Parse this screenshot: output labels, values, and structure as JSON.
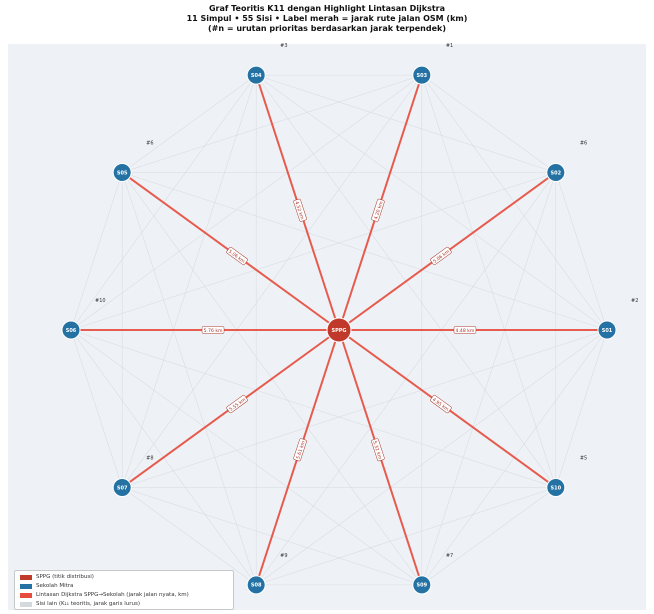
{
  "title": {
    "line1": "Graf Teoritis K11 dengan Highlight Lintasan Dijkstra",
    "line2": "11 Simpul • 55 Sisi • Label merah = jarak rute jalan OSM (km)",
    "line3": "(#n = urutan prioritas berdasarkan jarak terpendek)"
  },
  "colors": {
    "background": "#eef2f7",
    "hub": "#c0392b",
    "school": "#2471a3",
    "path": "#e74c3c",
    "other_edge": "#d5d8dc"
  },
  "hub": {
    "id": "SPPG"
  },
  "schools": [
    {
      "id": "S01",
      "priority": "#2",
      "distance": "4.48 km"
    },
    {
      "id": "S02",
      "priority": "#6",
      "distance": "5.06 km"
    },
    {
      "id": "S03",
      "priority": "#1",
      "distance": "4.20 km"
    },
    {
      "id": "S04",
      "priority": "#3",
      "distance": "4.52 km"
    },
    {
      "id": "S05",
      "priority": "#6",
      "distance": "5.06 km"
    },
    {
      "id": "S06",
      "priority": "#10",
      "distance": "5.76 km"
    },
    {
      "id": "S07",
      "priority": "#8",
      "distance": "5.55 km"
    },
    {
      "id": "S08",
      "priority": "#9",
      "distance": "5.61 km"
    },
    {
      "id": "S09",
      "priority": "#7",
      "distance": "5.32 km"
    },
    {
      "id": "S10",
      "priority": "#5",
      "distance": "4.95 km"
    }
  ],
  "legend": {
    "hub": "SPPG (titik distribusi)",
    "school": "Sekolah Mitra",
    "path": "Lintasan Dijkstra SPPG→Sekolah (jarak jalan nyata, km)",
    "other": "Sisi lain (K₁₁ teoritis, jarak garis lurus)"
  }
}
